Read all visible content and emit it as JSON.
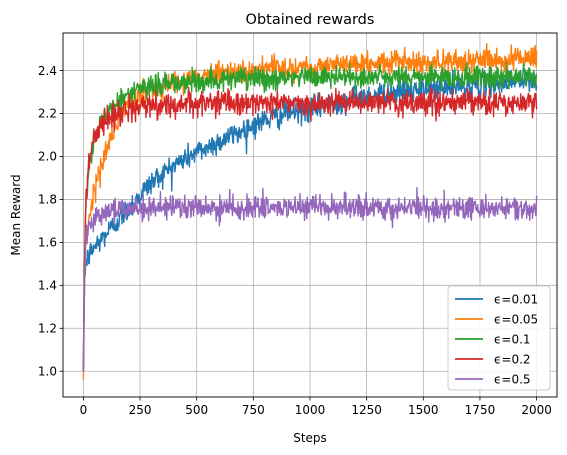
{
  "chart_data": {
    "type": "line",
    "title": "Obtained rewards",
    "xlabel": "Steps",
    "ylabel": "Mean Reward",
    "xlim": [
      -90,
      2090
    ],
    "ylim": [
      0.88,
      2.575
    ],
    "xticks": [
      0,
      250,
      500,
      750,
      1000,
      1250,
      1500,
      1750,
      2000
    ],
    "xtick_labels": [
      "0",
      "250",
      "500",
      "750",
      "1000",
      "1250",
      "1500",
      "1750",
      "2000"
    ],
    "yticks": [
      1.0,
      1.2,
      1.4,
      1.6,
      1.8,
      2.0,
      2.2,
      2.4
    ],
    "ytick_labels": [
      "1.0",
      "1.2",
      "1.4",
      "1.6",
      "1.8",
      "2.0",
      "2.2",
      "2.4"
    ],
    "grid": true,
    "legend_position": "lower-right",
    "series": [
      {
        "name": "ϵ=0.01",
        "color": "#1f77b4",
        "noise": 0.028,
        "x": [
          0,
          5,
          10,
          25,
          50,
          100,
          150,
          200,
          250,
          300,
          400,
          500,
          600,
          700,
          800,
          900,
          1000,
          1100,
          1200,
          1300,
          1400,
          1500,
          1600,
          1700,
          1800,
          1900,
          2000
        ],
        "y": [
          1.0,
          1.45,
          1.5,
          1.54,
          1.58,
          1.64,
          1.7,
          1.76,
          1.82,
          1.88,
          1.96,
          2.02,
          2.07,
          2.12,
          2.17,
          2.2,
          2.22,
          2.25,
          2.27,
          2.29,
          2.3,
          2.31,
          2.32,
          2.33,
          2.34,
          2.35,
          2.35
        ]
      },
      {
        "name": "ϵ=0.05",
        "color": "#ff7f0e",
        "noise": 0.026,
        "x": [
          0,
          5,
          10,
          25,
          50,
          100,
          150,
          200,
          250,
          300,
          400,
          500,
          600,
          700,
          800,
          1000,
          1200,
          1400,
          1600,
          1800,
          2000
        ],
        "y": [
          0.96,
          1.4,
          1.6,
          1.72,
          1.85,
          2.03,
          2.16,
          2.24,
          2.28,
          2.31,
          2.35,
          2.37,
          2.39,
          2.4,
          2.41,
          2.42,
          2.43,
          2.44,
          2.44,
          2.45,
          2.46
        ]
      },
      {
        "name": "ϵ=0.1",
        "color": "#2ca02c",
        "noise": 0.026,
        "x": [
          0,
          5,
          10,
          25,
          50,
          100,
          150,
          200,
          250,
          300,
          400,
          500,
          600,
          800,
          1000,
          1200,
          1500,
          2000
        ],
        "y": [
          1.0,
          1.5,
          1.75,
          1.95,
          2.1,
          2.2,
          2.26,
          2.29,
          2.31,
          2.33,
          2.34,
          2.35,
          2.36,
          2.36,
          2.37,
          2.37,
          2.37,
          2.37
        ]
      },
      {
        "name": "ϵ=0.2",
        "color": "#d62728",
        "noise": 0.028,
        "x": [
          0,
          5,
          10,
          25,
          50,
          100,
          150,
          200,
          250,
          300,
          400,
          500,
          700,
          1000,
          1500,
          2000
        ],
        "y": [
          1.0,
          1.55,
          1.8,
          1.98,
          2.1,
          2.17,
          2.2,
          2.22,
          2.23,
          2.24,
          2.24,
          2.25,
          2.25,
          2.25,
          2.25,
          2.25
        ]
      },
      {
        "name": "ϵ=0.5",
        "color": "#9467bd",
        "noise": 0.027,
        "x": [
          0,
          5,
          10,
          25,
          50,
          100,
          150,
          200,
          300,
          500,
          1000,
          1500,
          2000
        ],
        "y": [
          1.0,
          1.5,
          1.62,
          1.68,
          1.72,
          1.75,
          1.76,
          1.76,
          1.76,
          1.76,
          1.76,
          1.76,
          1.76
        ]
      }
    ]
  }
}
